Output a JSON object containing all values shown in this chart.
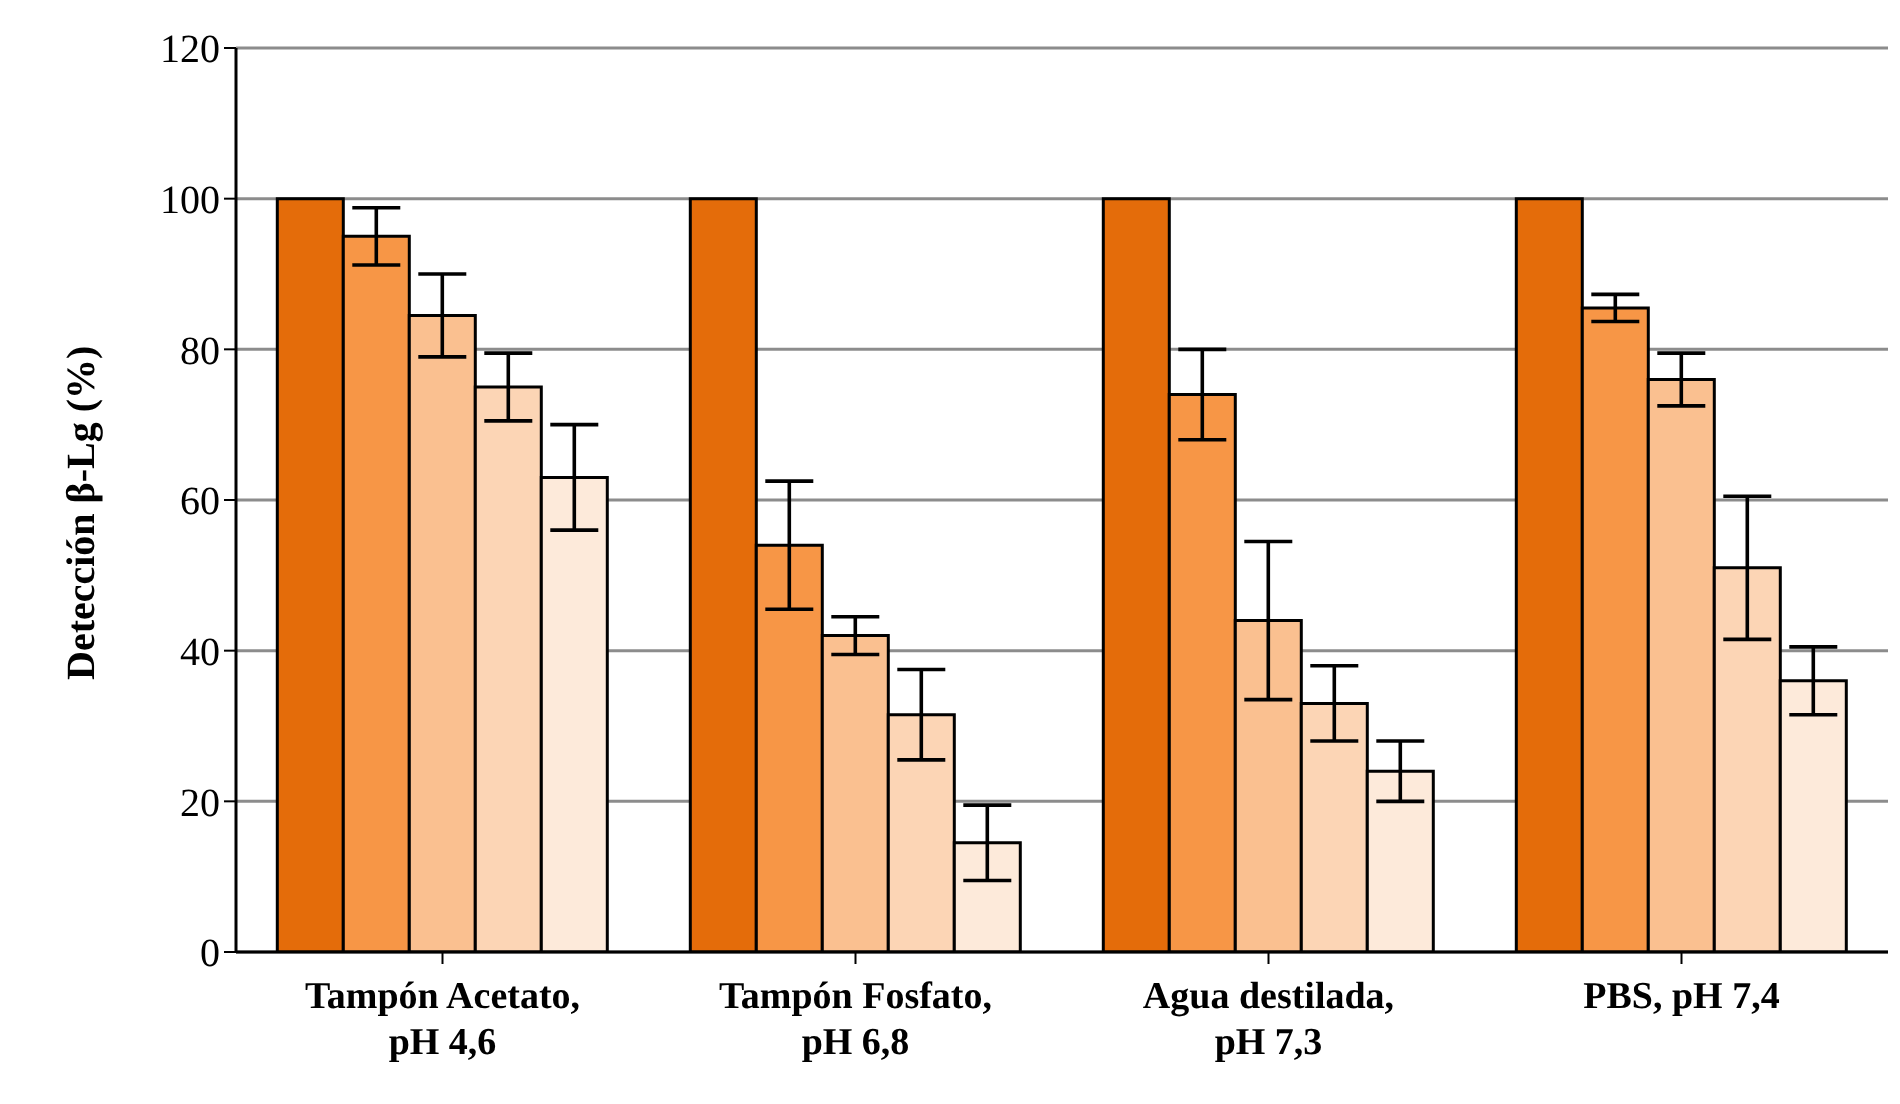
{
  "chart_data": {
    "type": "bar",
    "ylabel": "Detección β-Lg (%)",
    "categories": [
      "Tampón Acetato, pH 4,6",
      "Tampón Fosfato, pH 6,8",
      "Agua destilada, pH 7,3",
      "PBS, pH 7,4"
    ],
    "series": [
      {
        "color": "#e46c0a",
        "values": [
          100,
          100,
          100,
          100
        ]
      },
      {
        "color": "#f79646",
        "values": [
          95,
          54,
          74,
          85.5
        ],
        "errors": [
          3.8,
          8.5,
          6,
          1.8
        ]
      },
      {
        "color": "#fac090",
        "values": [
          84.5,
          42,
          44,
          76
        ],
        "errors": [
          5.5,
          2.5,
          10.5,
          3.5
        ]
      },
      {
        "color": "#fcd5b5",
        "values": [
          75,
          31.5,
          33,
          51
        ],
        "errors": [
          4.5,
          6,
          5,
          9.5
        ]
      },
      {
        "color": "#fdeada",
        "values": [
          63,
          14.5,
          24,
          36
        ],
        "errors": [
          7,
          5,
          4,
          4.5
        ]
      }
    ],
    "ylim": [
      0,
      120
    ],
    "yticks": [
      0,
      20,
      40,
      60,
      80,
      100,
      120
    ],
    "grid": "y",
    "legend": false
  }
}
